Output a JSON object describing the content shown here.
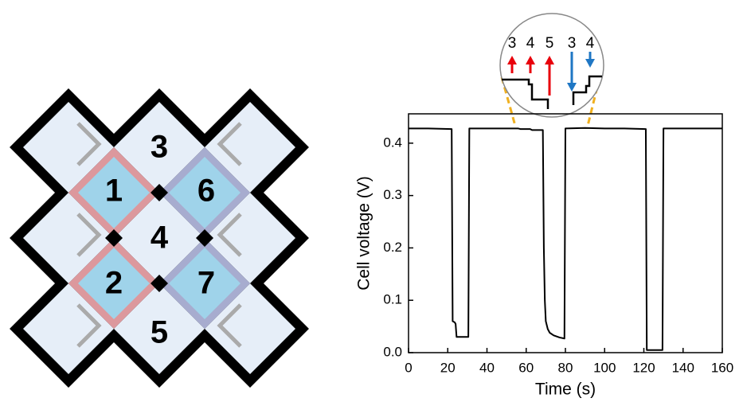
{
  "diagram": {
    "labels": [
      "1",
      "2",
      "3",
      "4",
      "5",
      "6",
      "7"
    ]
  },
  "inset": {
    "labels": [
      {
        "text": "3",
        "color": "#e8000b"
      },
      {
        "text": "4",
        "color": "#e8000b"
      },
      {
        "text": "5",
        "color": "#e8000b"
      },
      {
        "text": "3",
        "color": "#1f77c4"
      },
      {
        "text": "4",
        "color": "#1f77c4"
      }
    ]
  },
  "chart_data": {
    "type": "line",
    "xlabel": "Time (s)",
    "ylabel": "Cell voltage (V)",
    "x": [
      0,
      10,
      22,
      22.5,
      23.5,
      24,
      24.5,
      30.5,
      31,
      40,
      50,
      56,
      57,
      62,
      63,
      68.5,
      69,
      69.5,
      70,
      71,
      72,
      74,
      77,
      79.5,
      80,
      90,
      100,
      110,
      121,
      121.5,
      129.5,
      130,
      140,
      150,
      160
    ],
    "series": [
      {
        "color": "#000000",
        "values": [
          0.428,
          0.428,
          0.427,
          0.06,
          0.058,
          0.055,
          0.03,
          0.03,
          0.428,
          0.428,
          0.428,
          0.428,
          0.427,
          0.427,
          0.425,
          0.425,
          0.2,
          0.1,
          0.06,
          0.045,
          0.038,
          0.033,
          0.029,
          0.027,
          0.428,
          0.429,
          0.428,
          0.428,
          0.427,
          0.005,
          0.005,
          0.428,
          0.428,
          0.428,
          0.428
        ]
      }
    ],
    "xlim": [
      0,
      160
    ],
    "ylim": [
      0,
      0.456
    ],
    "xticks": [
      0,
      20,
      40,
      60,
      80,
      100,
      120,
      140,
      160
    ],
    "yticks": [
      {
        "value": 0,
        "label": "0.0"
      },
      0.1,
      0.2,
      0.3,
      0.4
    ]
  }
}
